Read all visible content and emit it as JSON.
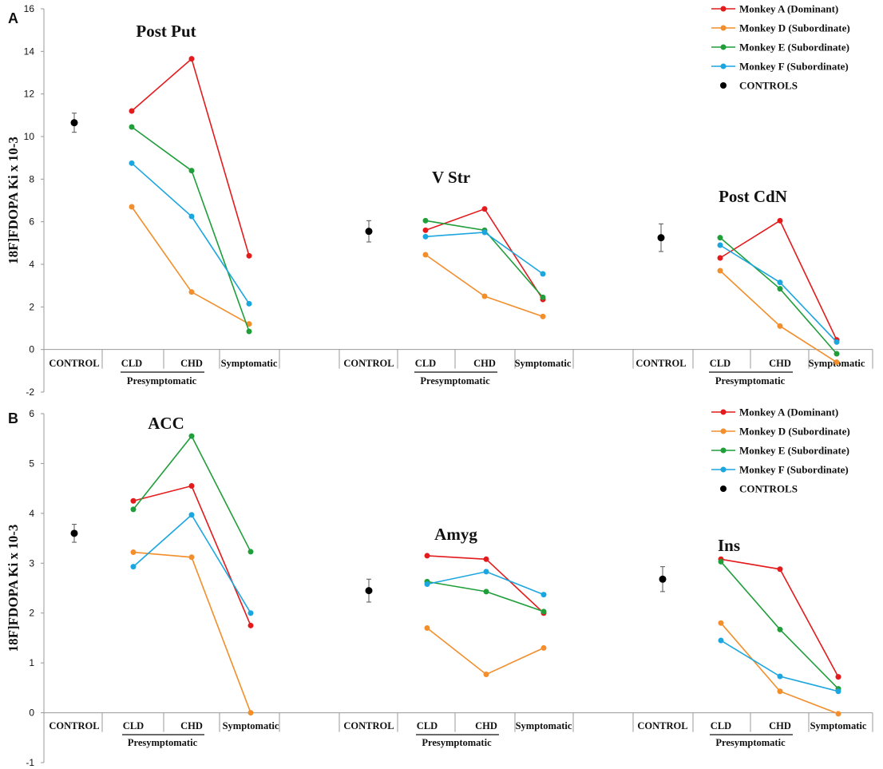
{
  "chart_data": [
    {
      "type": "line",
      "panel_label": "A",
      "ylabel": "18F]FDOPA Ki x 10-3",
      "ylim": [
        -2,
        16
      ],
      "yticks": [
        "-2",
        "0",
        "2",
        "4",
        "6",
        "8",
        "10",
        "12",
        "14",
        "16"
      ],
      "legend": {
        "placement": "top-right",
        "entries": [
          "Monkey A (Dominant)",
          "Monkey D (Subordinate)",
          "Monkey E (Subordinate)",
          "Monkey F (Subordinate)",
          "CONTROLS"
        ]
      },
      "categories": [
        "CONTROL",
        "CLD",
        "CHD",
        "Symptomatic"
      ],
      "group_label": "Presymptomatic",
      "groups": [
        {
          "title": "Post Put",
          "control": {
            "mean": 10.65,
            "err": 0.45
          },
          "series": [
            {
              "name": "Monkey A (Dominant)",
              "values": [
                11.2,
                13.65,
                4.4
              ]
            },
            {
              "name": "Monkey D (Subordinate)",
              "values": [
                6.7,
                2.7,
                1.2
              ]
            },
            {
              "name": "Monkey E (Subordinate)",
              "values": [
                10.45,
                8.4,
                0.85
              ]
            },
            {
              "name": "Monkey F (Subordinate)",
              "values": [
                8.75,
                6.25,
                2.15
              ]
            }
          ]
        },
        {
          "title": "V Str",
          "control": {
            "mean": 5.55,
            "err": 0.5
          },
          "series": [
            {
              "name": "Monkey A (Dominant)",
              "values": [
                5.6,
                6.6,
                2.35
              ]
            },
            {
              "name": "Monkey D (Subordinate)",
              "values": [
                4.45,
                2.5,
                1.55
              ]
            },
            {
              "name": "Monkey E (Subordinate)",
              "values": [
                6.05,
                5.6,
                2.45
              ]
            },
            {
              "name": "Monkey F (Subordinate)",
              "values": [
                5.3,
                5.5,
                3.55
              ]
            }
          ]
        },
        {
          "title": "Post CdN",
          "control": {
            "mean": 5.25,
            "err": 0.65
          },
          "series": [
            {
              "name": "Monkey A (Dominant)",
              "values": [
                4.3,
                6.05,
                0.45
              ]
            },
            {
              "name": "Monkey D (Subordinate)",
              "values": [
                3.7,
                1.1,
                -0.6
              ]
            },
            {
              "name": "Monkey E (Subordinate)",
              "values": [
                5.25,
                2.85,
                -0.2
              ]
            },
            {
              "name": "Monkey F (Subordinate)",
              "values": [
                4.9,
                3.15,
                0.35
              ]
            }
          ]
        }
      ]
    },
    {
      "type": "line",
      "panel_label": "B",
      "ylabel": "18F]FDOPA Ki x 10-3",
      "ylim": [
        -1,
        6
      ],
      "yticks": [
        "-1",
        "0",
        "1",
        "2",
        "3",
        "4",
        "5",
        "6"
      ],
      "legend": {
        "placement": "top-right",
        "entries": [
          "Monkey A (Dominant)",
          "Monkey D (Subordinate)",
          "Monkey E (Subordinate)",
          "Monkey F (Subordinate)",
          "CONTROLS"
        ]
      },
      "categories": [
        "CONTROL",
        "CLD",
        "CHD",
        "Symptomatic"
      ],
      "group_label": "Presymptomatic",
      "groups": [
        {
          "title": "ACC",
          "control": {
            "mean": 3.6,
            "err": 0.18
          },
          "series": [
            {
              "name": "Monkey A (Dominant)",
              "values": [
                4.25,
                4.55,
                1.75
              ]
            },
            {
              "name": "Monkey D (Subordinate)",
              "values": [
                3.22,
                3.12,
                0.0
              ]
            },
            {
              "name": "Monkey E (Subordinate)",
              "values": [
                4.08,
                5.55,
                3.23
              ]
            },
            {
              "name": "Monkey F (Subordinate)",
              "values": [
                2.93,
                3.97,
                2.0
              ]
            }
          ]
        },
        {
          "title": "Amyg",
          "control": {
            "mean": 2.45,
            "err": 0.23
          },
          "series": [
            {
              "name": "Monkey A (Dominant)",
              "values": [
                3.15,
                3.08,
                2.0
              ]
            },
            {
              "name": "Monkey D (Subordinate)",
              "values": [
                1.7,
                0.77,
                1.3
              ]
            },
            {
              "name": "Monkey E (Subordinate)",
              "values": [
                2.63,
                2.43,
                2.03
              ]
            },
            {
              "name": "Monkey F (Subordinate)",
              "values": [
                2.58,
                2.83,
                2.37
              ]
            }
          ]
        },
        {
          "title": "Ins",
          "control": {
            "mean": 2.68,
            "err": 0.25
          },
          "series": [
            {
              "name": "Monkey A (Dominant)",
              "values": [
                3.08,
                2.88,
                0.72
              ]
            },
            {
              "name": "Monkey D (Subordinate)",
              "values": [
                1.8,
                0.43,
                -0.02
              ]
            },
            {
              "name": "Monkey E (Subordinate)",
              "values": [
                3.03,
                1.67,
                0.48
              ]
            },
            {
              "name": "Monkey F (Subordinate)",
              "values": [
                1.45,
                0.73,
                0.43
              ]
            }
          ]
        }
      ]
    }
  ],
  "colors": {
    "Monkey A (Dominant)": "#e41a1c",
    "Monkey D (Subordinate)": "#f28e2b",
    "Monkey E (Subordinate)": "#1f9e3a",
    "Monkey F (Subordinate)": "#1ba6e0",
    "CONTROLS": "#000000",
    "axis": "#999999"
  }
}
